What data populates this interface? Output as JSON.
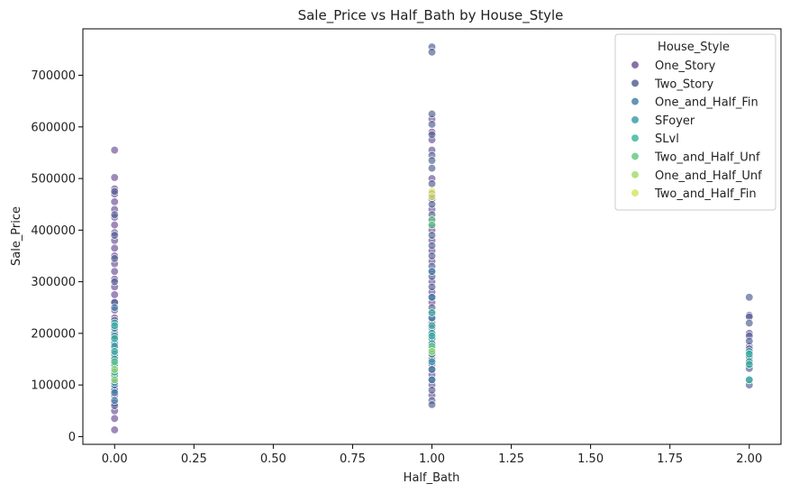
{
  "chart_data": {
    "type": "scatter",
    "title": "Sale_Price vs Half_Bath by House_Style",
    "xlabel": "Half_Bath",
    "ylabel": "Sale_Price",
    "xlim": [
      -0.1,
      2.1
    ],
    "ylim": [
      -15000,
      790000
    ],
    "xticks": [
      0.0,
      0.25,
      0.5,
      0.75,
      1.0,
      1.25,
      1.5,
      1.75,
      2.0
    ],
    "xtick_labels": [
      "0.00",
      "0.25",
      "0.50",
      "0.75",
      "1.00",
      "1.25",
      "1.50",
      "1.75",
      "2.00"
    ],
    "yticks": [
      0,
      100000,
      200000,
      300000,
      400000,
      500000,
      600000,
      700000
    ],
    "ytick_labels": [
      "0",
      "100000",
      "200000",
      "300000",
      "400000",
      "500000",
      "600000",
      "700000"
    ],
    "grid": false,
    "legend": {
      "title": "House_Style",
      "position": "top-right"
    },
    "series": [
      {
        "name": "One_Story",
        "color": "#6a4c93",
        "points": [
          [
            0,
            555000
          ],
          [
            0,
            502000
          ],
          [
            0,
            480000
          ],
          [
            0,
            470000
          ],
          [
            0,
            455000
          ],
          [
            0,
            440000
          ],
          [
            0,
            425000
          ],
          [
            0,
            410000
          ],
          [
            0,
            395000
          ],
          [
            0,
            380000
          ],
          [
            0,
            365000
          ],
          [
            0,
            350000
          ],
          [
            0,
            335000
          ],
          [
            0,
            320000
          ],
          [
            0,
            305000
          ],
          [
            0,
            290000
          ],
          [
            0,
            275000
          ],
          [
            0,
            260000
          ],
          [
            0,
            245000
          ],
          [
            0,
            230000
          ],
          [
            0,
            215000
          ],
          [
            0,
            200000
          ],
          [
            0,
            185000
          ],
          [
            0,
            170000
          ],
          [
            0,
            155000
          ],
          [
            0,
            140000
          ],
          [
            0,
            125000
          ],
          [
            0,
            110000
          ],
          [
            0,
            95000
          ],
          [
            0,
            80000
          ],
          [
            0,
            65000
          ],
          [
            0,
            50000
          ],
          [
            0,
            35000
          ],
          [
            0,
            13000
          ],
          [
            1,
            615000
          ],
          [
            1,
            590000
          ],
          [
            1,
            575000
          ],
          [
            1,
            555000
          ],
          [
            1,
            500000
          ],
          [
            1,
            460000
          ],
          [
            1,
            440000
          ],
          [
            1,
            420000
          ],
          [
            1,
            400000
          ],
          [
            1,
            380000
          ],
          [
            1,
            360000
          ],
          [
            1,
            340000
          ],
          [
            1,
            320000
          ],
          [
            1,
            300000
          ],
          [
            1,
            280000
          ],
          [
            1,
            260000
          ],
          [
            1,
            240000
          ],
          [
            1,
            220000
          ],
          [
            1,
            200000
          ],
          [
            1,
            180000
          ],
          [
            1,
            160000
          ],
          [
            1,
            140000
          ],
          [
            1,
            120000
          ],
          [
            1,
            100000
          ],
          [
            1,
            80000
          ],
          [
            2,
            235000
          ],
          [
            2,
            200000
          ],
          [
            2,
            175000
          ],
          [
            2,
            150000
          ]
        ]
      },
      {
        "name": "Two_Story",
        "color": "#4a5a8f",
        "points": [
          [
            0,
            475000
          ],
          [
            0,
            430000
          ],
          [
            0,
            390000
          ],
          [
            0,
            345000
          ],
          [
            0,
            300000
          ],
          [
            0,
            260000
          ],
          [
            0,
            225000
          ],
          [
            0,
            190000
          ],
          [
            0,
            150000
          ],
          [
            0,
            120000
          ],
          [
            0,
            90000
          ],
          [
            0,
            60000
          ],
          [
            1,
            755000
          ],
          [
            1,
            745000
          ],
          [
            1,
            625000
          ],
          [
            1,
            605000
          ],
          [
            1,
            585000
          ],
          [
            1,
            545000
          ],
          [
            1,
            535000
          ],
          [
            1,
            520000
          ],
          [
            1,
            490000
          ],
          [
            1,
            470000
          ],
          [
            1,
            450000
          ],
          [
            1,
            430000
          ],
          [
            1,
            410000
          ],
          [
            1,
            390000
          ],
          [
            1,
            370000
          ],
          [
            1,
            350000
          ],
          [
            1,
            330000
          ],
          [
            1,
            310000
          ],
          [
            1,
            290000
          ],
          [
            1,
            270000
          ],
          [
            1,
            250000
          ],
          [
            1,
            230000
          ],
          [
            1,
            210000
          ],
          [
            1,
            190000
          ],
          [
            1,
            170000
          ],
          [
            1,
            150000
          ],
          [
            1,
            130000
          ],
          [
            1,
            110000
          ],
          [
            1,
            90000
          ],
          [
            1,
            70000
          ],
          [
            1,
            62000
          ],
          [
            2,
            270000
          ],
          [
            2,
            232000
          ],
          [
            2,
            220000
          ],
          [
            2,
            195000
          ],
          [
            2,
            185000
          ],
          [
            2,
            170000
          ],
          [
            2,
            160000
          ],
          [
            2,
            140000
          ],
          [
            2,
            132000
          ],
          [
            2,
            100000
          ]
        ]
      },
      {
        "name": "One_and_Half_Fin",
        "color": "#3e7aa8",
        "points": [
          [
            0,
            250000
          ],
          [
            0,
            210000
          ],
          [
            0,
            180000
          ],
          [
            0,
            160000
          ],
          [
            0,
            145000
          ],
          [
            0,
            130000
          ],
          [
            0,
            115000
          ],
          [
            0,
            100000
          ],
          [
            0,
            85000
          ],
          [
            0,
            70000
          ],
          [
            1,
            320000
          ],
          [
            1,
            270000
          ],
          [
            1,
            230000
          ],
          [
            1,
            190000
          ],
          [
            1,
            160000
          ],
          [
            1,
            130000
          ],
          [
            1,
            110000
          ],
          [
            2,
            155000
          ],
          [
            2,
            110000
          ]
        ]
      },
      {
        "name": "SFoyer",
        "color": "#2e9aa8",
        "points": [
          [
            0,
            220000
          ],
          [
            0,
            195000
          ],
          [
            0,
            175000
          ],
          [
            0,
            150000
          ],
          [
            0,
            135000
          ],
          [
            0,
            120000
          ],
          [
            0,
            105000
          ],
          [
            1,
            200000
          ],
          [
            1,
            180000
          ],
          [
            1,
            165000
          ],
          [
            1,
            145000
          ],
          [
            2,
            165000
          ],
          [
            2,
            145000
          ]
        ]
      },
      {
        "name": "SLvl",
        "color": "#35b39a",
        "points": [
          [
            0,
            215000
          ],
          [
            0,
            190000
          ],
          [
            0,
            165000
          ],
          [
            0,
            140000
          ],
          [
            0,
            125000
          ],
          [
            1,
            240000
          ],
          [
            1,
            215000
          ],
          [
            1,
            195000
          ],
          [
            1,
            170000
          ],
          [
            2,
            160000
          ],
          [
            2,
            140000
          ],
          [
            2,
            110000
          ]
        ]
      },
      {
        "name": "Two_and_Half_Unf",
        "color": "#5fc57f",
        "points": [
          [
            0,
            145000
          ],
          [
            1,
            420000
          ],
          [
            1,
            410000
          ],
          [
            1,
            175000
          ]
        ]
      },
      {
        "name": "One_and_Half_Unf",
        "color": "#a3d96a",
        "points": [
          [
            0,
            130000
          ],
          [
            0,
            110000
          ],
          [
            1,
            165000
          ]
        ]
      },
      {
        "name": "Two_and_Half_Fin",
        "color": "#d4e35a",
        "points": [
          [
            1,
            475000
          ],
          [
            1,
            465000
          ]
        ]
      }
    ]
  }
}
